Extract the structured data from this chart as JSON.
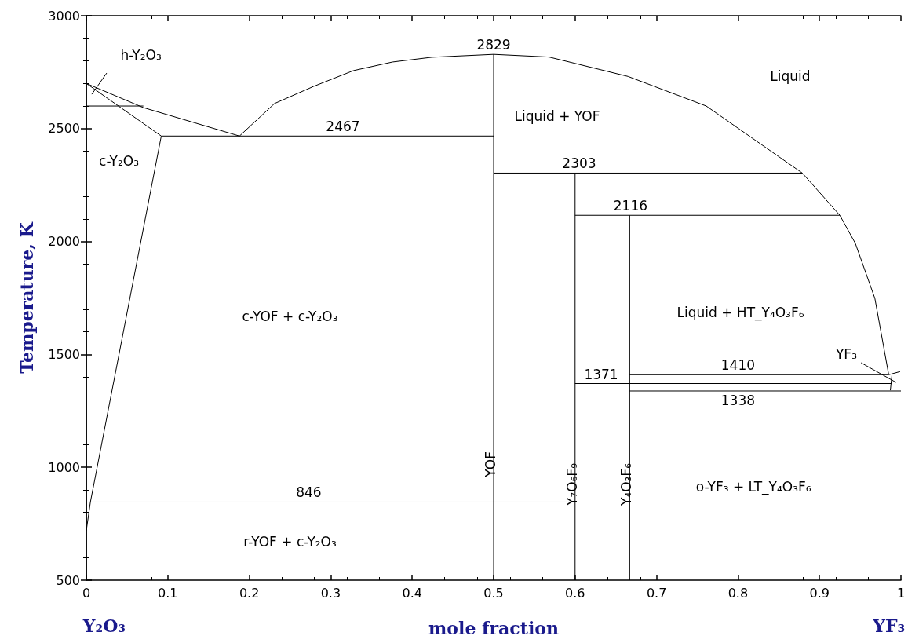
{
  "chart_data": {
    "type": "line",
    "xlabel": "mole fraction",
    "ylabel": "Temperature, K",
    "xlim": [
      0,
      1
    ],
    "xticks": [
      0,
      0.1,
      0.2,
      0.3,
      0.4,
      0.5,
      0.6,
      0.7,
      0.8,
      0.9,
      1
    ],
    "ylim": [
      500,
      3000
    ],
    "yticks": [
      500,
      1000,
      1500,
      2000,
      2500,
      3000
    ],
    "marker": "none",
    "series": [
      {
        "color": "#000000",
        "x": [
          0,
          0.07,
          0.188
        ],
        "values": [
          2700,
          2593,
          2467
        ]
      },
      {
        "color": "#000000",
        "x": [
          0,
          0.092
        ],
        "values": [
          2700,
          2467
        ]
      },
      {
        "color": "#000000",
        "x": [
          0,
          0.07
        ],
        "values": [
          2600,
          2600
        ]
      },
      {
        "color": "#000000",
        "x": [
          0.092,
          0.005,
          0
        ],
        "values": [
          2467,
          846,
          720
        ]
      },
      {
        "color": "#000000",
        "x": [
          0.092,
          0.5
        ],
        "values": [
          2467,
          2467
        ]
      },
      {
        "color": "#000000",
        "x": [
          0.188,
          0.231,
          0.279,
          0.328,
          0.376,
          0.424,
          0.5,
          0.568,
          0.665,
          0.761,
          0.879,
          0.925,
          0.944,
          0.968,
          0.985
        ],
        "values": [
          2467,
          2611,
          2687,
          2757,
          2795,
          2816,
          2829,
          2817,
          2731,
          2600,
          2303,
          2116,
          1992,
          1748,
          1410
        ]
      },
      {
        "color": "#000000",
        "x": [
          0.005,
          0.6
        ],
        "values": [
          846,
          846
        ]
      },
      {
        "name": "YOF",
        "color": "#000000",
        "x": [
          0.5,
          0.5,
          0.5
        ],
        "values": [
          500,
          1070,
          2829
        ]
      },
      {
        "name": "Y₇O₆F₉",
        "color": "#000000",
        "x": [
          0.6,
          0.6,
          0.6
        ],
        "values": [
          500,
          1018,
          2303
        ]
      },
      {
        "name": "Y₄O₃F₆",
        "color": "#000000",
        "x": [
          0.667,
          0.667,
          0.667
        ],
        "values": [
          500,
          1018,
          2116
        ]
      },
      {
        "color": "#000000",
        "x": [
          0.5,
          0.879
        ],
        "values": [
          2303,
          2303
        ]
      },
      {
        "color": "#000000",
        "x": [
          0.6,
          0.925
        ],
        "values": [
          2116,
          2116
        ]
      },
      {
        "color": "#000000",
        "x": [
          0.667,
          0.985,
          0.999
        ],
        "values": [
          1410,
          1410,
          1424
        ]
      },
      {
        "color": "#000000",
        "x": [
          0.6,
          0.989
        ],
        "values": [
          1371,
          1371
        ]
      },
      {
        "color": "#000000",
        "x": [
          0.667,
          1
        ],
        "values": [
          1338,
          1338
        ]
      },
      {
        "color": "#000000",
        "x": [
          0.989,
          0.987
        ],
        "values": [
          1410,
          1341
        ]
      },
      {
        "color": "#000000",
        "x": [
          0.0067,
          0.025
        ],
        "values": [
          2652,
          2746
        ]
      },
      {
        "color": "#000000",
        "x": [
          0.951,
          0.994
        ],
        "values": [
          1463,
          1376
        ]
      }
    ],
    "annotations": [
      {
        "text": "2829",
        "x": 0.5,
        "y": 2829
      },
      {
        "text": "2467",
        "x": 0.315,
        "y": 2467
      },
      {
        "text": "2303",
        "x": 0.605,
        "y": 2303
      },
      {
        "text": "2116",
        "x": 0.668,
        "y": 2116
      },
      {
        "text": "1371",
        "x": 0.632,
        "y": 1371
      },
      {
        "text": "1410",
        "x": 0.8,
        "y": 1410
      },
      {
        "text": "1338",
        "x": 0.8,
        "y": 1338
      },
      {
        "text": "846",
        "x": 0.273,
        "y": 846
      },
      "h-Y₂O₃",
      "c-Y₂O₃",
      "Liquid",
      "Liquid + YOF",
      "c-YOF + c-Y₂O₃",
      "Liquid + HT_Y₄O₃F₆",
      "YF₃",
      "o-YF₃ + LT_Y₄O₃F₆",
      "r-YOF + c-Y₂O₃",
      "Y₂O₃",
      "YF₃"
    ]
  }
}
